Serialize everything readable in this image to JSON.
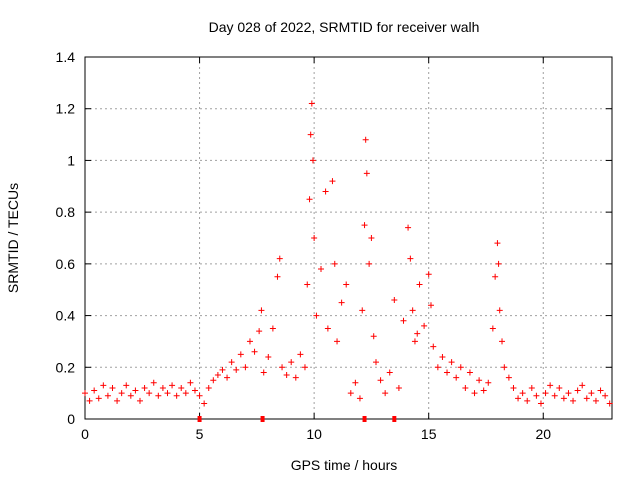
{
  "chart_data": {
    "type": "scatter",
    "title": "Day 028 of 2022, SRMTID for receiver walh",
    "xlabel": "GPS time / hours",
    "ylabel": "SRMTID / TECUs",
    "xlim": [
      0,
      23
    ],
    "ylim": [
      0,
      1.4
    ],
    "xticks": [
      0,
      5,
      10,
      15,
      20
    ],
    "yticks": [
      0,
      0.2,
      0.4,
      0.6,
      0.8,
      1,
      1.2,
      1.4
    ],
    "xtick_labels": [
      "0",
      "5",
      "10",
      "15",
      "20"
    ],
    "ytick_labels": [
      "0",
      "0.2",
      "0.4",
      "0.6",
      "0.8",
      "1",
      "1.2",
      "1.4"
    ],
    "grid": true,
    "marker": "+",
    "series_color": "#ff0000",
    "gap_markers_x": [
      5.0,
      7.75,
      12.2,
      13.5
    ],
    "series": [
      {
        "name": "SRMTID",
        "points": [
          [
            0.0,
            0.1
          ],
          [
            0.2,
            0.07
          ],
          [
            0.4,
            0.11
          ],
          [
            0.6,
            0.08
          ],
          [
            0.8,
            0.13
          ],
          [
            1.0,
            0.09
          ],
          [
            1.2,
            0.12
          ],
          [
            1.4,
            0.07
          ],
          [
            1.6,
            0.1
          ],
          [
            1.8,
            0.13
          ],
          [
            2.0,
            0.09
          ],
          [
            2.2,
            0.11
          ],
          [
            2.4,
            0.07
          ],
          [
            2.6,
            0.12
          ],
          [
            2.8,
            0.1
          ],
          [
            3.0,
            0.14
          ],
          [
            3.2,
            0.09
          ],
          [
            3.4,
            0.12
          ],
          [
            3.6,
            0.1
          ],
          [
            3.8,
            0.13
          ],
          [
            4.0,
            0.09
          ],
          [
            4.2,
            0.12
          ],
          [
            4.4,
            0.1
          ],
          [
            4.6,
            0.14
          ],
          [
            4.8,
            0.11
          ],
          [
            5.0,
            0.09
          ],
          [
            5.2,
            0.06
          ],
          [
            5.4,
            0.12
          ],
          [
            5.6,
            0.15
          ],
          [
            5.8,
            0.17
          ],
          [
            6.0,
            0.19
          ],
          [
            6.2,
            0.16
          ],
          [
            6.4,
            0.22
          ],
          [
            6.6,
            0.19
          ],
          [
            6.8,
            0.25
          ],
          [
            7.0,
            0.2
          ],
          [
            7.2,
            0.3
          ],
          [
            7.4,
            0.26
          ],
          [
            7.6,
            0.34
          ],
          [
            7.7,
            0.42
          ],
          [
            7.8,
            0.18
          ],
          [
            8.0,
            0.24
          ],
          [
            8.2,
            0.35
          ],
          [
            8.4,
            0.55
          ],
          [
            8.5,
            0.62
          ],
          [
            8.6,
            0.2
          ],
          [
            8.8,
            0.17
          ],
          [
            9.0,
            0.22
          ],
          [
            9.2,
            0.16
          ],
          [
            9.4,
            0.25
          ],
          [
            9.6,
            0.2
          ],
          [
            9.7,
            0.52
          ],
          [
            9.8,
            0.85
          ],
          [
            9.85,
            1.1
          ],
          [
            9.9,
            1.22
          ],
          [
            9.95,
            1.0
          ],
          [
            10.0,
            0.7
          ],
          [
            10.1,
            0.4
          ],
          [
            10.3,
            0.58
          ],
          [
            10.5,
            0.88
          ],
          [
            10.6,
            0.35
          ],
          [
            10.8,
            0.92
          ],
          [
            10.9,
            0.6
          ],
          [
            11.0,
            0.3
          ],
          [
            11.2,
            0.45
          ],
          [
            11.4,
            0.52
          ],
          [
            11.6,
            0.1
          ],
          [
            11.8,
            0.14
          ],
          [
            12.0,
            0.08
          ],
          [
            12.1,
            0.42
          ],
          [
            12.2,
            0.75
          ],
          [
            12.25,
            1.08
          ],
          [
            12.3,
            0.95
          ],
          [
            12.4,
            0.6
          ],
          [
            12.5,
            0.7
          ],
          [
            12.6,
            0.32
          ],
          [
            12.7,
            0.22
          ],
          [
            12.9,
            0.15
          ],
          [
            13.1,
            0.1
          ],
          [
            13.3,
            0.18
          ],
          [
            13.5,
            0.46
          ],
          [
            13.7,
            0.12
          ],
          [
            13.9,
            0.38
          ],
          [
            14.1,
            0.74
          ],
          [
            14.2,
            0.62
          ],
          [
            14.3,
            0.42
          ],
          [
            14.4,
            0.3
          ],
          [
            14.5,
            0.33
          ],
          [
            14.6,
            0.52
          ],
          [
            14.8,
            0.36
          ],
          [
            15.0,
            0.56
          ],
          [
            15.1,
            0.44
          ],
          [
            15.2,
            0.28
          ],
          [
            15.4,
            0.2
          ],
          [
            15.6,
            0.24
          ],
          [
            15.8,
            0.18
          ],
          [
            16.0,
            0.22
          ],
          [
            16.2,
            0.16
          ],
          [
            16.4,
            0.2
          ],
          [
            16.6,
            0.12
          ],
          [
            16.8,
            0.18
          ],
          [
            17.0,
            0.1
          ],
          [
            17.2,
            0.15
          ],
          [
            17.4,
            0.11
          ],
          [
            17.6,
            0.14
          ],
          [
            17.8,
            0.35
          ],
          [
            17.9,
            0.55
          ],
          [
            18.0,
            0.68
          ],
          [
            18.05,
            0.6
          ],
          [
            18.1,
            0.42
          ],
          [
            18.2,
            0.3
          ],
          [
            18.3,
            0.2
          ],
          [
            18.5,
            0.16
          ],
          [
            18.7,
            0.12
          ],
          [
            18.9,
            0.08
          ],
          [
            19.1,
            0.1
          ],
          [
            19.3,
            0.07
          ],
          [
            19.5,
            0.12
          ],
          [
            19.7,
            0.09
          ],
          [
            19.9,
            0.06
          ],
          [
            20.1,
            0.1
          ],
          [
            20.3,
            0.13
          ],
          [
            20.5,
            0.09
          ],
          [
            20.7,
            0.12
          ],
          [
            20.9,
            0.08
          ],
          [
            21.1,
            0.1
          ],
          [
            21.3,
            0.07
          ],
          [
            21.5,
            0.11
          ],
          [
            21.7,
            0.13
          ],
          [
            21.9,
            0.08
          ],
          [
            22.1,
            0.1
          ],
          [
            22.3,
            0.07
          ],
          [
            22.5,
            0.11
          ],
          [
            22.7,
            0.09
          ],
          [
            22.9,
            0.06
          ]
        ]
      }
    ]
  }
}
